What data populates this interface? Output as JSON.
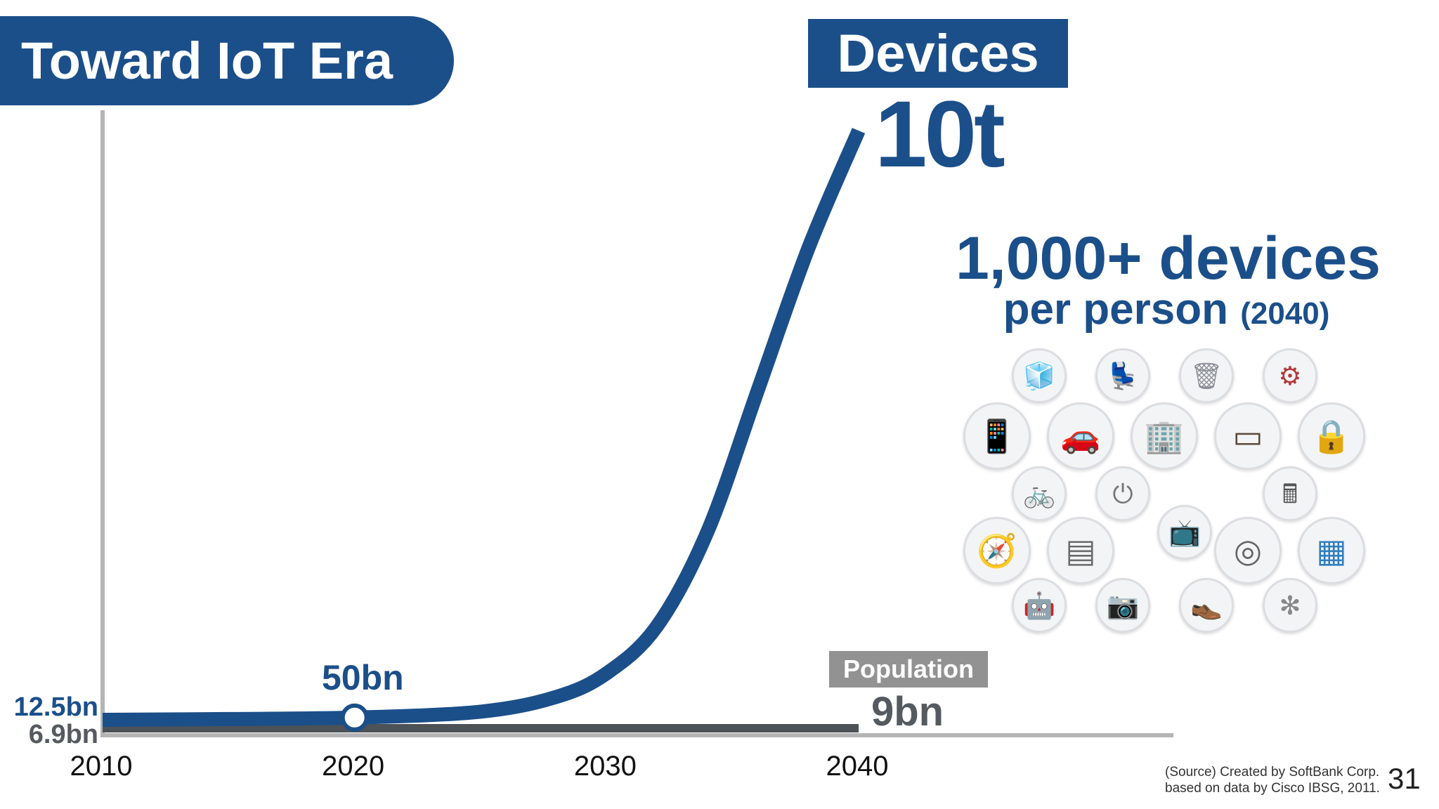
{
  "title": "Toward IoT Era",
  "devices_label": "Devices",
  "devices_value": "10t",
  "population_label": "Population",
  "population_value": "9bn",
  "callout_2020": "50bn",
  "per_person": {
    "big": "1,000+ devices",
    "small": "per person",
    "year": "(2040)"
  },
  "device_icons": [
    "refrigerator-icon",
    "chair-icon",
    "trash-bin-icon",
    "vacuum-cleaner-icon",
    "smartphone-icon",
    "car-icon",
    "building-icon",
    "tablet-icon",
    "door-lock-icon",
    "bicycle-icon",
    "power-outlet-icon",
    "cash-register-icon",
    "car-navigation-icon",
    "oven-icon",
    "television-icon",
    "washing-machine-icon",
    "store-shelf-icon",
    "robot-icon",
    "security-camera-icon",
    "shoes-icon",
    "fan-icon"
  ],
  "source_line1": "(Source) Created by SoftBank Corp.",
  "source_line2": "based on data by Cisco IBSG, 2011.",
  "page_number": "31",
  "colors": {
    "primary": "#1b4f8a",
    "population": "#4d5257",
    "axis": "#b5b5b5",
    "population_label_bg": "#929292"
  },
  "chart_data": {
    "type": "line",
    "x_ticks": [
      "2010",
      "2020",
      "2030",
      "2040"
    ],
    "series": [
      {
        "name": "Devices",
        "color": "#1b4f8a",
        "points": [
          [
            2010,
            12.5
          ],
          [
            2015,
            25
          ],
          [
            2020,
            50
          ],
          [
            2025,
            150
          ],
          [
            2028,
            400
          ],
          [
            2030,
            800
          ],
          [
            2032,
            1600
          ],
          [
            2034,
            3200
          ],
          [
            2036,
            5600
          ],
          [
            2038,
            8000
          ],
          [
            2040,
            10000
          ]
        ],
        "start_label": "12.5bn",
        "end_label": "10t",
        "marker": {
          "x": 2020,
          "label": "50bn"
        }
      },
      {
        "name": "Population",
        "color": "#4d5257",
        "points": [
          [
            2010,
            6.9
          ],
          [
            2040,
            9
          ]
        ],
        "start_label": "6.9bn",
        "end_label": "9bn"
      }
    ],
    "xlim": [
      2010,
      2051
    ],
    "ylim_billions": [
      0,
      10000
    ],
    "y_unit": "billion",
    "grid": false,
    "legend": "none"
  }
}
